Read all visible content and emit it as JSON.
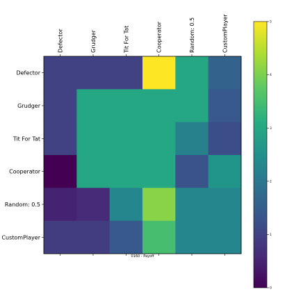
{
  "chart_data": {
    "type": "heatmap",
    "title": "",
    "xlabel": "0160 - Payoff",
    "ylabel": "",
    "rows": [
      "Defector",
      "Grudger",
      "Tit For Tat",
      "Cooperator",
      "Random: 0.5",
      "CustomPlayer"
    ],
    "columns": [
      "Defector",
      "Grudger",
      "Tit For Tat",
      "Cooperator",
      "Random: 0.5",
      "CustomPlayer"
    ],
    "values": [
      [
        1.0,
        1.0,
        1.0,
        5.0,
        3.0,
        1.6
      ],
      [
        1.0,
        3.0,
        3.0,
        3.0,
        3.0,
        1.4
      ],
      [
        1.0,
        3.0,
        3.0,
        3.0,
        2.2,
        1.2
      ],
      [
        0.0,
        3.0,
        3.0,
        3.0,
        1.3,
        2.6
      ],
      [
        0.5,
        0.6,
        2.3,
        4.1,
        2.3,
        2.3
      ],
      [
        0.9,
        0.9,
        1.4,
        3.5,
        2.3,
        2.3
      ]
    ],
    "vmin": 0,
    "vmax": 5,
    "colormap": "viridis",
    "colorbar_ticks": [
      "0",
      "1",
      "2",
      "3",
      "4",
      "5"
    ],
    "grid": false
  }
}
